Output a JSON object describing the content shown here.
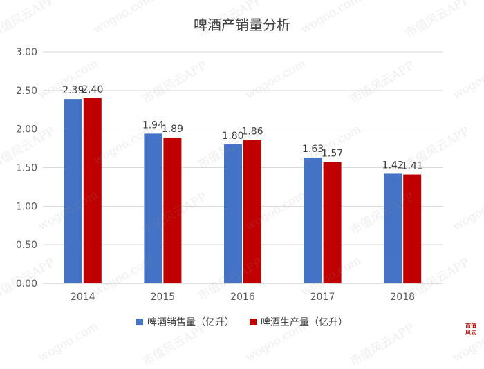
{
  "chart_data": {
    "type": "bar",
    "title": "啤酒产销量分析",
    "categories": [
      "2014",
      "2015",
      "2016",
      "2017",
      "2018"
    ],
    "series": [
      {
        "name": "啤酒销售量（亿升）",
        "values": [
          2.39,
          1.94,
          1.8,
          1.63,
          1.42
        ],
        "labels": [
          "2.39",
          "1.94",
          "1.80",
          "1.63",
          "1.42"
        ],
        "color": "#4472C4"
      },
      {
        "name": "啤酒生产量（亿升）",
        "values": [
          2.4,
          1.89,
          1.86,
          1.57,
          1.41
        ],
        "labels": [
          "2.40",
          "1.89",
          "1.86",
          "1.57",
          "1.41"
        ],
        "color": "#C00000"
      }
    ],
    "y_ticks": [
      "0.00",
      "0.50",
      "1.00",
      "1.50",
      "2.00",
      "2.50",
      "3.00"
    ],
    "ylim": [
      0,
      3
    ],
    "grid": true,
    "legend_position": "bottom"
  },
  "watermark": {
    "texts": [
      "市值风云APP",
      "wogoo.com"
    ]
  },
  "logo": {
    "text": "市值风云"
  }
}
